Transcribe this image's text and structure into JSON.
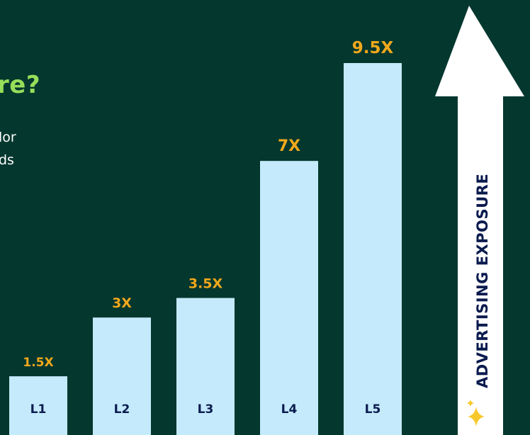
{
  "text": {
    "heading_fragment": "re?",
    "body_line1": "lor",
    "body_line2": "ds"
  },
  "colors": {
    "background": "#04372e",
    "bar": "#c4eafb",
    "value_label": "#f2a81c",
    "category_label": "#0b1b4f",
    "heading": "#95df5a",
    "arrow": "#ffffff"
  },
  "icons": {
    "sparkle": "sparkle-icon"
  },
  "chart_data": {
    "type": "bar",
    "categories": [
      "L1",
      "L2",
      "L3",
      "L4",
      "L5"
    ],
    "values": [
      1.5,
      3,
      3.5,
      7,
      9.5
    ],
    "value_labels": [
      "1.5X",
      "3X",
      "3.5X",
      "7X",
      "9.5X"
    ],
    "ylabel": "ADVERTISING EXPOSURE",
    "ylim": [
      0,
      9.5
    ],
    "grid": false,
    "legend": "none"
  }
}
